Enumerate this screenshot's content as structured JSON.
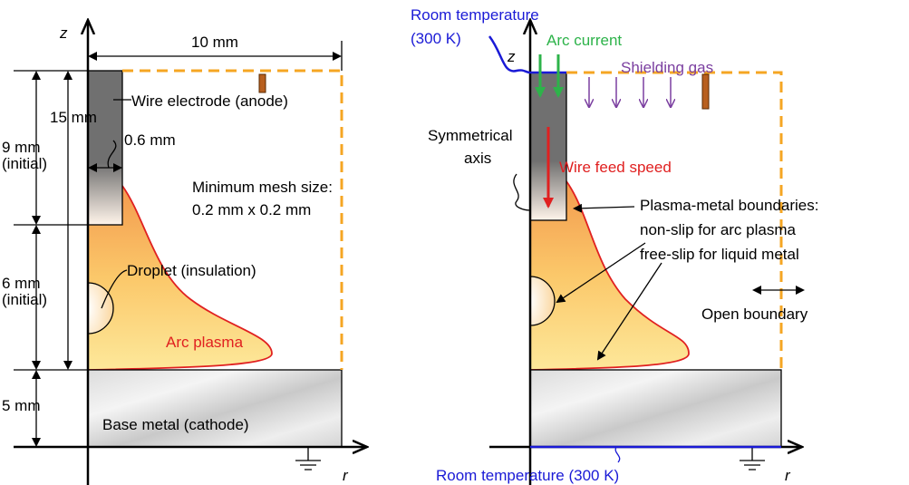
{
  "left": {
    "z_axis": "z",
    "r_axis": "r",
    "width_dim": "10 mm",
    "height_dim": "15 mm",
    "wire_dim": [
      "9 mm",
      "(initial)"
    ],
    "gap_dim": [
      "6 mm",
      "(initial)"
    ],
    "base_dim": "5 mm",
    "diameter_dim": "0.6 mm",
    "wire_label": "Wire electrode (anode)",
    "mesh": [
      "Minimum mesh size:",
      "0.2 mm x 0.2 mm"
    ],
    "droplet_label": "Droplet (insulation)",
    "plasma_label": "Arc plasma",
    "base_label": "Base metal (cathode)"
  },
  "right": {
    "room_top": [
      "Room temperature",
      "(300 K)"
    ],
    "z_axis": "z",
    "r_axis": "r",
    "arc_current": "Arc current",
    "shielding_gas": "Shielding gas",
    "symmetry": [
      "Symmetrical",
      "axis"
    ],
    "wire_feed": "Wire feed speed",
    "boundaries": [
      "Plasma-metal boundaries:",
      "non-slip for arc plasma",
      "free-slip for liquid metal"
    ],
    "open_boundary": "Open boundary",
    "room_bottom": "Room temperature (300 K)"
  }
}
